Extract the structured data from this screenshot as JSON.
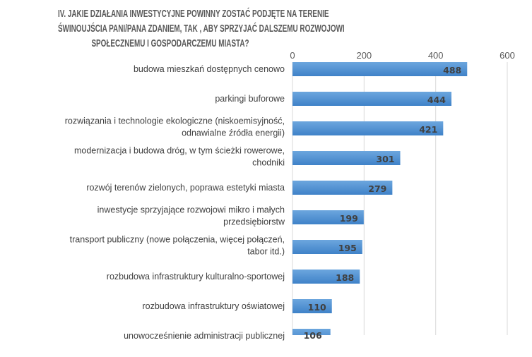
{
  "chart_data": {
    "type": "bar",
    "orientation": "horizontal",
    "title": "IV. JAKIE DZIAŁANIA INWESTYCYJNE POWINNY ZOSTAĆ PODJĘTE NA TERENIE ŚWINOUJŚCIA PANI/PANA ZDANIEM, TAK , ABY SPRZYJAĆ DALSZEMU ROZWOJOWI SPOŁECZNEMU I GOSPODARCZEMU MIASTA?",
    "title_lines": [
      "IV. JAKIE DZIAŁANIA INWESTYCYJNE POWINNY ZOSTAĆ PODJĘTE NA TERENIE",
      "ŚWINOUJŚCIA PANI/PANA ZDANIEM, TAK , ABY SPRZYJAĆ DALSZEMU ROZWOJOWI",
      "SPOŁECZNEMU I GOSPODARCZEMU MIASTA?"
    ],
    "categories": [
      [
        "budowa mieszkań dostępnych cenowo"
      ],
      [
        "parkingi buforowe"
      ],
      [
        "rozwiązania i technologie ekologiczne (niskoemisyjność,",
        "odnawialne źródła energii)"
      ],
      [
        "modernizacja i budowa dróg, w tym ścieżki rowerowe,",
        "chodniki"
      ],
      [
        "rozwój terenów zielonych, poprawa estetyki miasta"
      ],
      [
        "inwestycje sprzyjające rozwojowi mikro i małych",
        "przedsiębiorstw"
      ],
      [
        "transport publiczny (nowe połączenia, więcej połączeń,",
        "tabor itd.)"
      ],
      [
        "rozbudowa infrastruktury kulturalno-sportowej"
      ],
      [
        "rozbudowa infrastruktury oświatowej"
      ],
      [
        "unowocześnienie administracji publicznej"
      ]
    ],
    "values": [
      488,
      444,
      421,
      301,
      279,
      199,
      195,
      188,
      110,
      106
    ],
    "xlim": [
      0,
      600
    ],
    "xticks": [
      "0",
      "200",
      "400",
      "600"
    ],
    "axis_position": "top",
    "grid": true,
    "bar_color": "#5B9BD5",
    "xlabel": "",
    "ylabel": ""
  }
}
